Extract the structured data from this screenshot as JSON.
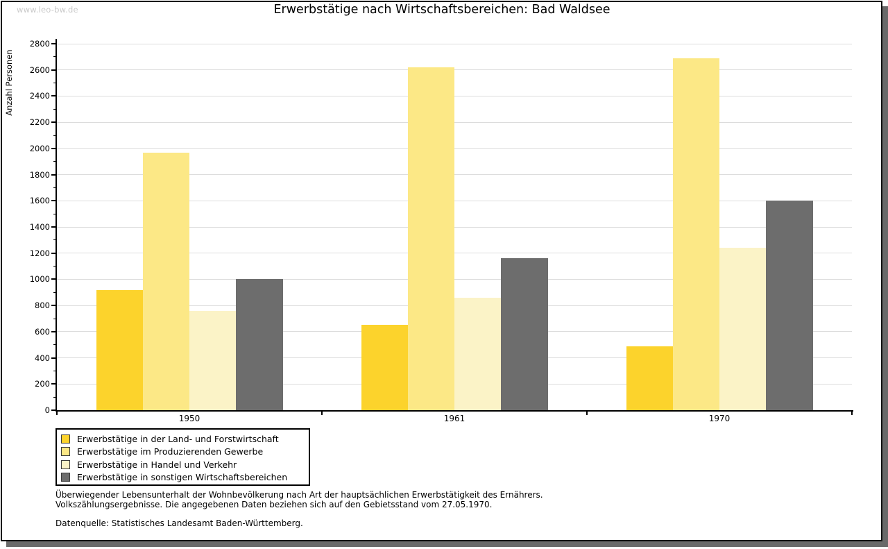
{
  "watermark": "www.leo-bw.de",
  "title": "Erwerbstätige nach Wirtschaftsbereichen: Bad Waldsee",
  "chart_data": {
    "type": "bar",
    "title": "Erwerbstätige nach Wirtschaftsbereichen: Bad Waldsee",
    "xlabel": "",
    "ylabel": "Anzahl Personen",
    "ylim": [
      0,
      2800
    ],
    "ytick_step": 200,
    "yminor_step": 100,
    "grid": true,
    "legend_position": "bottom-left",
    "categories": [
      "1950",
      "1961",
      "1970"
    ],
    "series": [
      {
        "name": "Erwerbstätige in der Land- und Forstwirtschaft",
        "color": "#fcd32c",
        "values": [
          920,
          650,
          490
        ]
      },
      {
        "name": "Erwerbstätige im Produzierenden Gewerbe",
        "color": "#fce886",
        "values": [
          1970,
          2620,
          2690
        ]
      },
      {
        "name": "Erwerbstätige in Handel und Verkehr",
        "color": "#fbf3c7",
        "values": [
          760,
          860,
          1240
        ]
      },
      {
        "name": "Erwerbstätige in sonstigen Wirtschaftsbereichen",
        "color": "#6d6d6d",
        "values": [
          1000,
          1160,
          1600
        ]
      }
    ]
  },
  "footnotes": {
    "line1": "Überwiegender Lebensunterhalt der Wohnbevölkerung nach Art der hauptsächlichen Erwerbstätigkeit des Ernährers.",
    "line2": "Volkszählungsergebnisse. Die angegebenen Daten beziehen sich auf den Gebietsstand vom 27.05.1970.",
    "source": "Datenquelle: Statistisches Landesamt Baden-Württemberg."
  },
  "colors": {
    "frame_border": "#111111",
    "frame_shadow": "#6a6a6a",
    "gridline": "#dcdcdc",
    "watermark": "#c9c9c9"
  }
}
